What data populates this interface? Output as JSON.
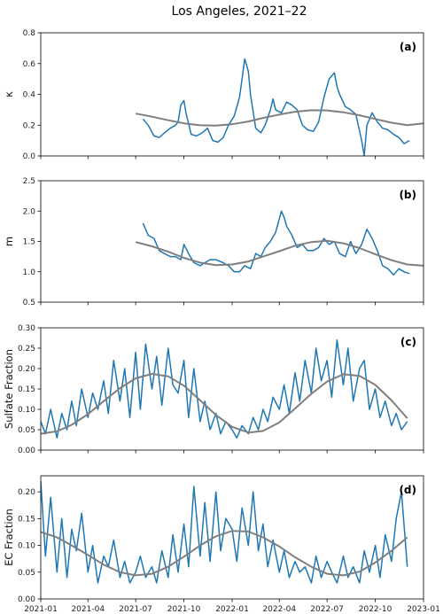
{
  "title": "Los Angeles, 2021–22",
  "colors": {
    "series": "#1f77b4",
    "fit": "#7f7f7f",
    "axis": "#000000"
  },
  "x_axis": {
    "range": [
      "2021-01-01",
      "2023-01-01"
    ],
    "ticks": [
      "2021-01",
      "2021-04",
      "2021-07",
      "2021-10",
      "2022-01",
      "2022-04",
      "2022-07",
      "2022-10",
      "2023-01"
    ],
    "tick_dates": [
      "2021-01-01",
      "2021-04-01",
      "2021-07-01",
      "2021-10-01",
      "2022-01-01",
      "2022-04-01",
      "2022-07-01",
      "2022-10-01",
      "2023-01-01"
    ]
  },
  "chart_data": [
    {
      "type": "line",
      "panel_label": "(a)",
      "ylabel": "κ",
      "ylim": [
        0,
        0.8
      ],
      "yticks": [
        "0.0",
        "0.2",
        "0.4",
        "0.6",
        "0.8"
      ],
      "ytick_values": [
        0,
        0.2,
        0.4,
        0.6,
        0.8
      ],
      "series": [
        {
          "x": [
            "2021-07-15",
            "2021-07-25",
            "2021-08-05",
            "2021-08-15",
            "2021-08-25",
            "2021-09-05",
            "2021-09-15",
            "2021-09-20",
            "2021-09-25",
            "2021-10-01",
            "2021-10-05",
            "2021-10-15",
            "2021-10-25",
            "2021-11-05",
            "2021-11-15",
            "2021-11-25",
            "2021-12-05",
            "2021-12-15",
            "2021-12-25",
            "2022-01-05",
            "2022-01-15",
            "2022-01-20",
            "2022-01-25",
            "2022-02-01",
            "2022-02-05",
            "2022-02-15",
            "2022-02-25",
            "2022-03-05",
            "2022-03-15",
            "2022-03-20",
            "2022-03-25",
            "2022-04-05",
            "2022-04-15",
            "2022-04-25",
            "2022-05-05",
            "2022-05-15",
            "2022-05-25",
            "2022-06-05",
            "2022-06-15",
            "2022-06-25",
            "2022-07-05",
            "2022-07-15",
            "2022-07-20",
            "2022-07-25",
            "2022-08-05",
            "2022-08-15",
            "2022-08-25",
            "2022-09-05",
            "2022-09-10",
            "2022-09-15",
            "2022-09-25",
            "2022-10-05",
            "2022-10-15",
            "2022-10-25",
            "2022-11-05",
            "2022-11-15",
            "2022-11-25",
            "2022-12-05"
          ],
          "y": [
            0.24,
            0.2,
            0.13,
            0.12,
            0.15,
            0.18,
            0.2,
            0.22,
            0.33,
            0.36,
            0.28,
            0.14,
            0.13,
            0.15,
            0.18,
            0.1,
            0.09,
            0.12,
            0.2,
            0.26,
            0.38,
            0.5,
            0.63,
            0.55,
            0.4,
            0.18,
            0.15,
            0.2,
            0.3,
            0.37,
            0.3,
            0.28,
            0.35,
            0.33,
            0.3,
            0.2,
            0.17,
            0.16,
            0.22,
            0.38,
            0.5,
            0.54,
            0.45,
            0.4,
            0.32,
            0.3,
            0.27,
            0.1,
            0.0,
            0.2,
            0.28,
            0.22,
            0.18,
            0.17,
            0.14,
            0.12,
            0.08,
            0.1
          ]
        },
        {
          "name": "fit",
          "x": [
            "2021-07-01",
            "2021-08-01",
            "2021-09-01",
            "2021-10-01",
            "2021-11-01",
            "2021-12-01",
            "2022-01-01",
            "2022-02-01",
            "2022-03-01",
            "2022-04-01",
            "2022-05-01",
            "2022-06-01",
            "2022-07-01",
            "2022-08-01",
            "2022-09-01",
            "2022-10-01",
            "2022-11-01",
            "2022-12-01",
            "2023-01-01"
          ],
          "y": [
            0.275,
            0.255,
            0.232,
            0.212,
            0.199,
            0.197,
            0.206,
            0.224,
            0.247,
            0.269,
            0.287,
            0.297,
            0.296,
            0.284,
            0.264,
            0.24,
            0.216,
            0.2,
            0.212
          ]
        }
      ]
    },
    {
      "type": "line",
      "panel_label": "(b)",
      "ylabel": "m",
      "ylim": [
        0.5,
        2.5
      ],
      "yticks": [
        "0.5",
        "1.0",
        "1.5",
        "2.0",
        "2.5"
      ],
      "ytick_values": [
        0.5,
        1.0,
        1.5,
        2.0,
        2.5
      ],
      "series": [
        {
          "x": [
            "2021-07-15",
            "2021-07-25",
            "2021-08-05",
            "2021-08-15",
            "2021-08-25",
            "2021-09-05",
            "2021-09-15",
            "2021-09-25",
            "2021-10-01",
            "2021-10-10",
            "2021-10-20",
            "2021-11-01",
            "2021-11-10",
            "2021-11-20",
            "2021-12-01",
            "2021-12-15",
            "2021-12-25",
            "2022-01-05",
            "2022-01-15",
            "2022-01-25",
            "2022-02-05",
            "2022-02-15",
            "2022-02-25",
            "2022-03-05",
            "2022-03-15",
            "2022-03-25",
            "2022-04-05",
            "2022-04-10",
            "2022-04-15",
            "2022-04-25",
            "2022-05-05",
            "2022-05-15",
            "2022-05-25",
            "2022-06-05",
            "2022-06-15",
            "2022-06-25",
            "2022-07-05",
            "2022-07-15",
            "2022-07-25",
            "2022-08-05",
            "2022-08-15",
            "2022-08-25",
            "2022-09-05",
            "2022-09-15",
            "2022-09-25",
            "2022-10-05",
            "2022-10-15",
            "2022-10-25",
            "2022-11-05",
            "2022-11-15",
            "2022-11-25",
            "2022-12-05"
          ],
          "y": [
            1.8,
            1.6,
            1.55,
            1.35,
            1.3,
            1.25,
            1.25,
            1.2,
            1.45,
            1.3,
            1.15,
            1.1,
            1.15,
            1.2,
            1.2,
            1.15,
            1.1,
            1.0,
            1.0,
            1.1,
            1.05,
            1.3,
            1.25,
            1.4,
            1.5,
            1.65,
            2.0,
            1.9,
            1.75,
            1.6,
            1.4,
            1.45,
            1.35,
            1.35,
            1.4,
            1.55,
            1.45,
            1.5,
            1.3,
            1.25,
            1.5,
            1.3,
            1.45,
            1.7,
            1.55,
            1.35,
            1.1,
            1.05,
            0.95,
            1.05,
            1.0,
            0.97
          ]
        },
        {
          "name": "fit",
          "x": [
            "2021-07-01",
            "2021-08-01",
            "2021-09-01",
            "2021-10-01",
            "2021-11-01",
            "2021-12-01",
            "2022-01-01",
            "2022-02-01",
            "2022-03-01",
            "2022-04-01",
            "2022-05-01",
            "2022-06-01",
            "2022-07-01",
            "2022-08-01",
            "2022-09-01",
            "2022-10-01",
            "2022-11-01",
            "2022-12-01",
            "2023-01-01"
          ],
          "y": [
            1.49,
            1.42,
            1.33,
            1.23,
            1.15,
            1.11,
            1.12,
            1.17,
            1.25,
            1.34,
            1.43,
            1.49,
            1.51,
            1.47,
            1.39,
            1.29,
            1.19,
            1.12,
            1.1
          ]
        }
      ]
    },
    {
      "type": "line",
      "panel_label": "(c)",
      "ylabel": "Sulfate Fraction",
      "ylim": [
        0,
        0.3
      ],
      "yticks": [
        "0.00",
        "0.05",
        "0.10",
        "0.15",
        "0.20",
        "0.25",
        "0.30"
      ],
      "ytick_values": [
        0,
        0.05,
        0.1,
        0.15,
        0.2,
        0.25,
        0.3
      ],
      "series": [
        {
          "x": [
            "2021-01-01",
            "2021-01-10",
            "2021-01-20",
            "2021-02-01",
            "2021-02-10",
            "2021-02-20",
            "2021-03-01",
            "2021-03-10",
            "2021-03-20",
            "2021-04-01",
            "2021-04-10",
            "2021-04-20",
            "2021-05-01",
            "2021-05-10",
            "2021-05-20",
            "2021-06-01",
            "2021-06-10",
            "2021-06-20",
            "2021-07-01",
            "2021-07-10",
            "2021-07-20",
            "2021-08-01",
            "2021-08-10",
            "2021-08-20",
            "2021-09-01",
            "2021-09-10",
            "2021-09-20",
            "2021-10-01",
            "2021-10-10",
            "2021-10-20",
            "2021-11-01",
            "2021-11-10",
            "2021-11-20",
            "2021-12-01",
            "2021-12-10",
            "2021-12-20",
            "2022-01-01",
            "2022-01-10",
            "2022-01-20",
            "2022-02-01",
            "2022-02-10",
            "2022-02-20",
            "2022-03-01",
            "2022-03-10",
            "2022-03-20",
            "2022-04-01",
            "2022-04-10",
            "2022-04-20",
            "2022-05-01",
            "2022-05-10",
            "2022-05-20",
            "2022-06-01",
            "2022-06-10",
            "2022-06-20",
            "2022-07-01",
            "2022-07-10",
            "2022-07-20",
            "2022-08-01",
            "2022-08-10",
            "2022-08-20",
            "2022-09-01",
            "2022-09-10",
            "2022-09-20",
            "2022-10-01",
            "2022-10-10",
            "2022-10-20",
            "2022-11-01",
            "2022-11-10",
            "2022-11-20",
            "2022-12-01"
          ],
          "y": [
            0.07,
            0.04,
            0.1,
            0.03,
            0.09,
            0.05,
            0.12,
            0.06,
            0.15,
            0.08,
            0.14,
            0.1,
            0.17,
            0.09,
            0.22,
            0.12,
            0.2,
            0.08,
            0.24,
            0.1,
            0.26,
            0.15,
            0.23,
            0.11,
            0.25,
            0.16,
            0.14,
            0.22,
            0.08,
            0.2,
            0.07,
            0.12,
            0.05,
            0.09,
            0.04,
            0.07,
            0.05,
            0.03,
            0.06,
            0.04,
            0.08,
            0.05,
            0.1,
            0.07,
            0.13,
            0.1,
            0.16,
            0.09,
            0.19,
            0.12,
            0.22,
            0.14,
            0.25,
            0.17,
            0.22,
            0.13,
            0.27,
            0.16,
            0.25,
            0.12,
            0.2,
            0.22,
            0.1,
            0.15,
            0.08,
            0.12,
            0.06,
            0.09,
            0.05,
            0.07
          ]
        },
        {
          "name": "fit",
          "x": [
            "2021-01-01",
            "2021-02-01",
            "2021-03-01",
            "2021-04-01",
            "2021-05-01",
            "2021-06-01",
            "2021-07-01",
            "2021-08-01",
            "2021-09-01",
            "2021-10-01",
            "2021-11-01",
            "2021-12-01",
            "2022-01-01",
            "2022-02-01",
            "2022-03-01",
            "2022-04-01",
            "2022-05-01",
            "2022-06-01",
            "2022-07-01",
            "2022-08-01",
            "2022-09-01",
            "2022-10-01",
            "2022-11-01",
            "2022-12-01"
          ],
          "y": [
            0.04,
            0.046,
            0.062,
            0.088,
            0.12,
            0.152,
            0.176,
            0.187,
            0.181,
            0.158,
            0.122,
            0.086,
            0.057,
            0.043,
            0.047,
            0.068,
            0.102,
            0.138,
            0.168,
            0.186,
            0.182,
            0.16,
            0.122,
            0.078
          ]
        }
      ]
    },
    {
      "type": "line",
      "panel_label": "(d)",
      "ylabel": "EC Fraction",
      "ylim": [
        0,
        0.23
      ],
      "yticks": [
        "0.00",
        "0.05",
        "0.10",
        "0.15",
        "0.20"
      ],
      "ytick_values": [
        0,
        0.05,
        0.1,
        0.15,
        0.2
      ],
      "series": [
        {
          "x": [
            "2021-01-01",
            "2021-01-10",
            "2021-01-20",
            "2021-02-01",
            "2021-02-10",
            "2021-02-20",
            "2021-03-01",
            "2021-03-10",
            "2021-03-20",
            "2021-04-01",
            "2021-04-10",
            "2021-04-20",
            "2021-05-01",
            "2021-05-10",
            "2021-05-20",
            "2021-06-01",
            "2021-06-10",
            "2021-06-20",
            "2021-07-01",
            "2021-07-10",
            "2021-07-20",
            "2021-08-01",
            "2021-08-10",
            "2021-08-20",
            "2021-09-01",
            "2021-09-10",
            "2021-09-20",
            "2021-10-01",
            "2021-10-10",
            "2021-10-20",
            "2021-11-01",
            "2021-11-10",
            "2021-11-20",
            "2021-12-01",
            "2021-12-10",
            "2021-12-20",
            "2022-01-01",
            "2022-01-10",
            "2022-01-20",
            "2022-02-01",
            "2022-02-10",
            "2022-02-20",
            "2022-03-01",
            "2022-03-10",
            "2022-03-20",
            "2022-04-01",
            "2022-04-10",
            "2022-04-20",
            "2022-05-01",
            "2022-05-10",
            "2022-05-20",
            "2022-06-01",
            "2022-06-10",
            "2022-06-20",
            "2022-07-01",
            "2022-07-10",
            "2022-07-20",
            "2022-08-01",
            "2022-08-10",
            "2022-08-20",
            "2022-09-01",
            "2022-09-10",
            "2022-09-20",
            "2022-10-01",
            "2022-10-10",
            "2022-10-20",
            "2022-11-01",
            "2022-11-10",
            "2022-11-20",
            "2022-12-01"
          ],
          "y": [
            0.22,
            0.08,
            0.19,
            0.05,
            0.15,
            0.04,
            0.13,
            0.09,
            0.16,
            0.05,
            0.1,
            0.03,
            0.08,
            0.06,
            0.11,
            0.04,
            0.07,
            0.03,
            0.05,
            0.08,
            0.04,
            0.06,
            0.03,
            0.09,
            0.04,
            0.12,
            0.05,
            0.14,
            0.06,
            0.21,
            0.08,
            0.18,
            0.07,
            0.2,
            0.09,
            0.15,
            0.13,
            0.07,
            0.17,
            0.1,
            0.2,
            0.09,
            0.14,
            0.06,
            0.11,
            0.05,
            0.09,
            0.04,
            0.07,
            0.05,
            0.06,
            0.03,
            0.08,
            0.04,
            0.07,
            0.05,
            0.03,
            0.08,
            0.04,
            0.06,
            0.03,
            0.09,
            0.05,
            0.1,
            0.04,
            0.12,
            0.07,
            0.15,
            0.2,
            0.06
          ]
        },
        {
          "name": "fit",
          "x": [
            "2021-01-01",
            "2021-02-01",
            "2021-03-01",
            "2021-04-01",
            "2021-05-01",
            "2021-06-01",
            "2021-07-01",
            "2021-08-01",
            "2021-09-01",
            "2021-10-01",
            "2021-11-01",
            "2021-12-01",
            "2022-01-01",
            "2022-02-01",
            "2022-03-01",
            "2022-04-01",
            "2022-05-01",
            "2022-06-01",
            "2022-07-01",
            "2022-08-01",
            "2022-09-01",
            "2022-10-01",
            "2022-11-01",
            "2022-12-01"
          ],
          "y": [
            0.125,
            0.115,
            0.1,
            0.082,
            0.064,
            0.05,
            0.044,
            0.047,
            0.06,
            0.079,
            0.1,
            0.117,
            0.127,
            0.126,
            0.115,
            0.098,
            0.078,
            0.06,
            0.047,
            0.044,
            0.051,
            0.068,
            0.09,
            0.115
          ]
        }
      ]
    }
  ]
}
